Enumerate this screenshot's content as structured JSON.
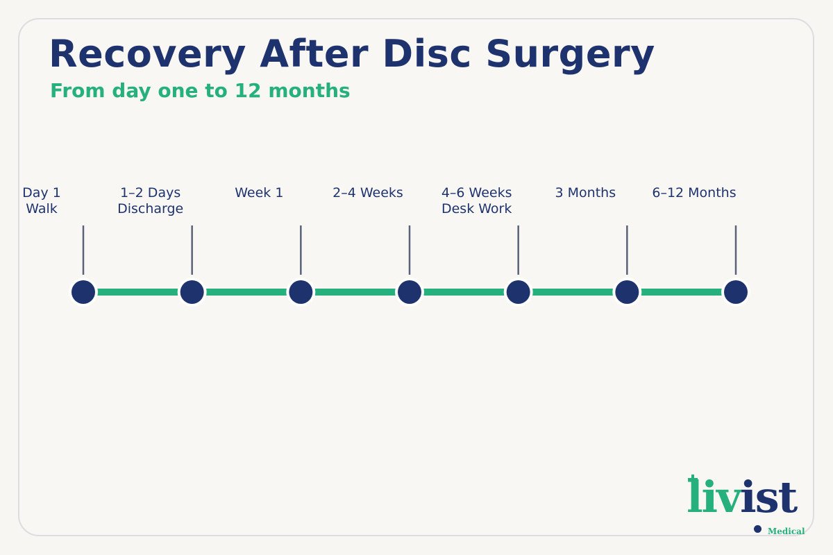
{
  "header": {
    "title": "Recovery After Disc Surgery",
    "subtitle": "From day one to 12 months"
  },
  "timeline": {
    "colors": {
      "line": "#25b07d",
      "node": "#1e336e",
      "stem": "#5a6278",
      "text": "#1e336e"
    },
    "milestones": [
      {
        "lines": [
          "Day 1",
          "Walk"
        ]
      },
      {
        "lines": [
          "1–2 Days",
          "Discharge"
        ]
      },
      {
        "lines": [
          "Week 1"
        ]
      },
      {
        "lines": [
          "2–4 Weeks"
        ]
      },
      {
        "lines": [
          "4–6 Weeks",
          "Desk Work"
        ]
      },
      {
        "lines": [
          "3 Months"
        ]
      },
      {
        "lines": [
          "6–12 Months"
        ]
      }
    ]
  },
  "logo": {
    "word_green": "liv",
    "word_blue": "ist",
    "tagline": "Medical"
  }
}
